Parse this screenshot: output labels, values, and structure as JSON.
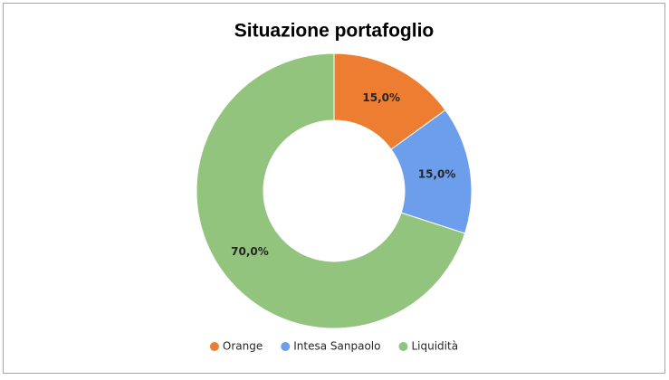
{
  "chart_data": {
    "type": "donut",
    "title": "Situazione portafoglio",
    "categories": [
      "Orange",
      "Intesa Sanpaolo",
      "Liquidità"
    ],
    "values": [
      15,
      15,
      70
    ],
    "value_labels": [
      "15,0%",
      "15,0%",
      "70,0%"
    ],
    "colors": [
      "#ed7d31",
      "#6d9eeb",
      "#93c47d"
    ],
    "legend": "bottom"
  }
}
